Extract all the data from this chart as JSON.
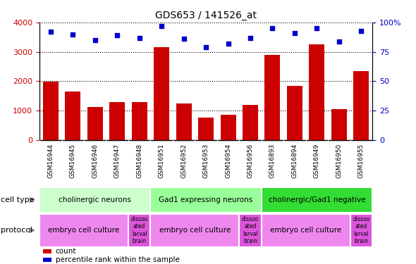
{
  "title": "GDS653 / 141526_at",
  "samples": [
    "GSM16944",
    "GSM16945",
    "GSM16946",
    "GSM16947",
    "GSM16948",
    "GSM16951",
    "GSM16952",
    "GSM16953",
    "GSM16954",
    "GSM16956",
    "GSM16893",
    "GSM16894",
    "GSM16949",
    "GSM16950",
    "GSM16955"
  ],
  "counts": [
    1980,
    1650,
    1130,
    1290,
    1290,
    3150,
    1230,
    760,
    860,
    1190,
    2900,
    1830,
    3250,
    1060,
    2350
  ],
  "percentiles": [
    92,
    90,
    85,
    89,
    87,
    97,
    86,
    79,
    82,
    87,
    95,
    91,
    95,
    84,
    93
  ],
  "bar_color": "#cc0000",
  "dot_color": "#0000cc",
  "ylim_left": [
    0,
    4000
  ],
  "ylim_right": [
    0,
    100
  ],
  "yticks_left": [
    0,
    1000,
    2000,
    3000,
    4000
  ],
  "yticks_right": [
    0,
    25,
    50,
    75,
    100
  ],
  "cell_type_groups": [
    {
      "label": "cholinergic neurons",
      "start": 0,
      "end": 5,
      "color": "#ccffcc"
    },
    {
      "label": "Gad1 expressing neurons",
      "start": 5,
      "end": 10,
      "color": "#99ff99"
    },
    {
      "label": "cholinergic/Gad1 negative",
      "start": 10,
      "end": 15,
      "color": "#33dd33"
    }
  ],
  "protocol_groups": [
    {
      "label": "embryo cell culture",
      "start": 0,
      "end": 4,
      "color": "#ee88ee"
    },
    {
      "label": "dissoo\nated\nlarval\nbrain",
      "start": 4,
      "end": 5,
      "color": "#dd55dd"
    },
    {
      "label": "embryo cell culture",
      "start": 5,
      "end": 9,
      "color": "#ee88ee"
    },
    {
      "label": "dissoo\nated\nlarval\nbrain",
      "start": 9,
      "end": 10,
      "color": "#dd55dd"
    },
    {
      "label": "embryo cell culture",
      "start": 10,
      "end": 14,
      "color": "#ee88ee"
    },
    {
      "label": "dissoo\nated\nlarval\nbrain",
      "start": 14,
      "end": 15,
      "color": "#dd55dd"
    }
  ],
  "legend_items": [
    {
      "color": "#cc0000",
      "label": "count"
    },
    {
      "color": "#0000cc",
      "label": "percentile rank within the sample"
    }
  ],
  "xtick_bg": "#cccccc",
  "cell_type_label": "cell type",
  "protocol_label": "protocol"
}
